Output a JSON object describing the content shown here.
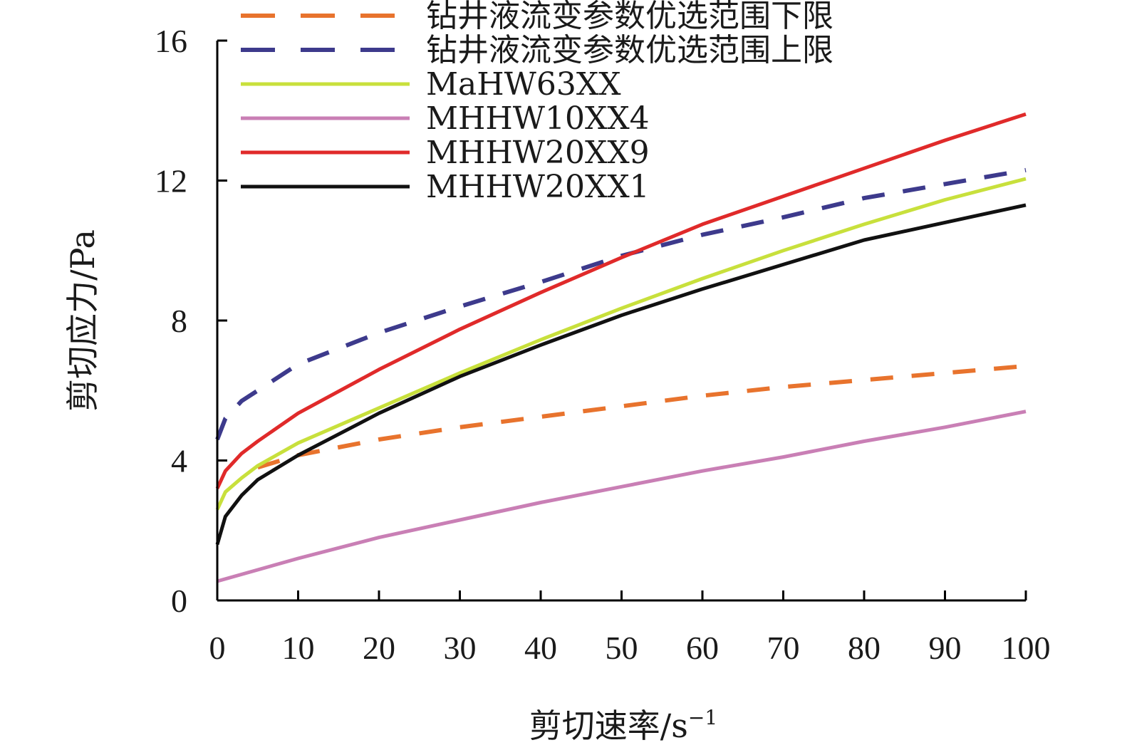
{
  "chart_data": {
    "type": "line",
    "title": "",
    "xlabel": "剪切速率/s",
    "xlabel_sup": "−1",
    "ylabel": "剪切应力/Pa",
    "xlim": [
      0,
      100
    ],
    "ylim": [
      0,
      16
    ],
    "xticks": [
      0,
      10,
      20,
      30,
      40,
      50,
      60,
      70,
      80,
      90,
      100
    ],
    "yticks": [
      0,
      4,
      8,
      12,
      16
    ],
    "grid": false,
    "legend_position": "top-left",
    "series": [
      {
        "name": "钻井液流变参数优选范围下限",
        "color": "#e8732d",
        "dashed": true,
        "x": [
          5,
          10,
          20,
          30,
          40,
          50,
          60,
          70,
          80,
          90,
          100
        ],
        "y": [
          3.8,
          4.15,
          4.6,
          4.95,
          5.25,
          5.55,
          5.85,
          6.1,
          6.3,
          6.5,
          6.7
        ]
      },
      {
        "name": "钻井液流变参数优选范围上限",
        "color": "#3d3a8c",
        "dashed": true,
        "x": [
          0,
          1,
          3,
          5,
          10,
          20,
          30,
          40,
          50,
          60,
          70,
          80,
          90,
          100
        ],
        "y": [
          4.6,
          5.2,
          5.7,
          6.0,
          6.75,
          7.65,
          8.4,
          9.1,
          9.85,
          10.45,
          10.95,
          11.5,
          11.9,
          12.3
        ]
      },
      {
        "name": "MaHW63XX",
        "color": "#c8e03c",
        "dashed": false,
        "x": [
          0,
          1,
          3,
          5,
          10,
          20,
          30,
          40,
          50,
          60,
          70,
          80,
          90,
          100
        ],
        "y": [
          2.6,
          3.1,
          3.5,
          3.85,
          4.5,
          5.5,
          6.5,
          7.45,
          8.35,
          9.2,
          10.0,
          10.75,
          11.45,
          12.05
        ]
      },
      {
        "name": "MHHW10XX4",
        "color": "#c97fb5",
        "dashed": false,
        "x": [
          0,
          10,
          20,
          30,
          40,
          50,
          60,
          70,
          80,
          90,
          100
        ],
        "y": [
          0.55,
          1.2,
          1.8,
          2.3,
          2.8,
          3.25,
          3.7,
          4.1,
          4.55,
          4.95,
          5.4
        ]
      },
      {
        "name": "MHHW20XX9",
        "color": "#e02a2a",
        "dashed": false,
        "x": [
          0,
          1,
          3,
          5,
          10,
          20,
          30,
          40,
          50,
          60,
          70,
          80,
          90,
          100
        ],
        "y": [
          3.2,
          3.7,
          4.2,
          4.55,
          5.35,
          6.6,
          7.75,
          8.8,
          9.8,
          10.75,
          11.55,
          12.35,
          13.15,
          13.9
        ]
      },
      {
        "name": "MHHW20XX1",
        "color": "#111111",
        "dashed": false,
        "x": [
          0,
          1,
          3,
          5,
          10,
          20,
          30,
          40,
          50,
          60,
          70,
          80,
          90,
          100
        ],
        "y": [
          1.6,
          2.4,
          3.0,
          3.45,
          4.15,
          5.35,
          6.4,
          7.3,
          8.15,
          8.9,
          9.6,
          10.3,
          10.8,
          11.3
        ]
      }
    ]
  }
}
